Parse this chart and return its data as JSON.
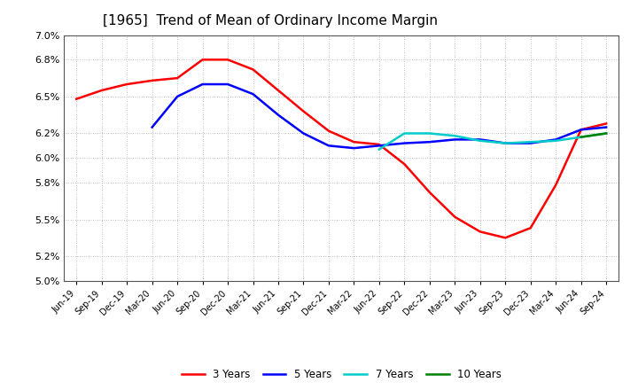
{
  "title": "[1965]  Trend of Mean of Ordinary Income Margin",
  "title_fontsize": 11,
  "background_color": "#ffffff",
  "plot_background": "#ffffff",
  "grid_color": "#aaaaaa",
  "ylim": [
    0.05,
    0.07
  ],
  "yticks": [
    0.05,
    0.052,
    0.055,
    0.058,
    0.06,
    0.062,
    0.065,
    0.068,
    0.07
  ],
  "ytick_labels": [
    "5.0%",
    "5.2%",
    "5.5%",
    "5.8%",
    "6.0%",
    "6.2%",
    "6.5%",
    "6.8%",
    "7.0%"
  ],
  "series": {
    "3 Years": {
      "color": "#ff0000",
      "values": [
        0.0648,
        0.0655,
        0.066,
        0.0663,
        0.0665,
        0.068,
        0.068,
        0.0672,
        0.0655,
        0.0638,
        0.0622,
        0.0613,
        0.0611,
        0.0595,
        0.0572,
        0.0552,
        0.054,
        0.0535,
        0.0543,
        0.0578,
        0.0623,
        0.0628
      ]
    },
    "5 Years": {
      "color": "#0000ff",
      "values": [
        null,
        null,
        null,
        0.0625,
        0.065,
        0.066,
        0.066,
        0.0652,
        0.0635,
        0.062,
        0.061,
        0.0608,
        0.061,
        0.0612,
        0.0613,
        0.0615,
        0.0615,
        0.0612,
        0.0612,
        0.0615,
        0.0623,
        0.0625
      ]
    },
    "7 Years": {
      "color": "#00cccc",
      "values": [
        null,
        null,
        null,
        null,
        null,
        null,
        null,
        null,
        null,
        null,
        null,
        null,
        0.0607,
        0.062,
        0.062,
        0.0618,
        0.0614,
        0.0612,
        0.0613,
        0.0614,
        0.0617,
        0.062
      ]
    },
    "10 Years": {
      "color": "#008000",
      "values": [
        null,
        null,
        null,
        null,
        null,
        null,
        null,
        null,
        null,
        null,
        null,
        null,
        null,
        null,
        null,
        null,
        null,
        null,
        null,
        null,
        0.0617,
        0.062
      ]
    }
  },
  "x_labels": [
    "Jun-19",
    "Sep-19",
    "Dec-19",
    "Mar-20",
    "Jun-20",
    "Sep-20",
    "Dec-20",
    "Mar-21",
    "Jun-21",
    "Sep-21",
    "Dec-21",
    "Mar-22",
    "Jun-22",
    "Sep-22",
    "Dec-22",
    "Mar-23",
    "Jun-23",
    "Sep-23",
    "Dec-23",
    "Mar-24",
    "Jun-24",
    "Sep-24"
  ]
}
